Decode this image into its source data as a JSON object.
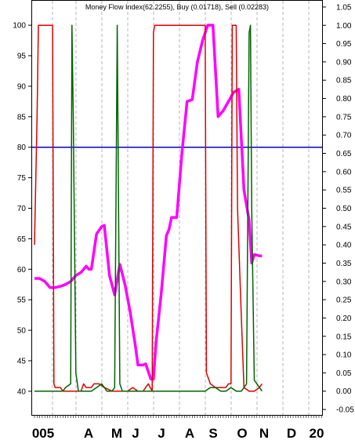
{
  "chart_data": {
    "type": "line",
    "title": "Money Flow Index(62.2255), Buy (0.01718), Sell (0.02283)",
    "y_left": {
      "range": [
        36,
        104
      ],
      "ticks": [
        100,
        95,
        90,
        85,
        80,
        75,
        70,
        65,
        60,
        55,
        50,
        45,
        40
      ]
    },
    "y_right": {
      "range": [
        -0.067,
        1.067
      ],
      "ticks": [
        "1.05",
        "1.00",
        "0.95",
        "0.90",
        "0.85",
        "0.80",
        "0.75",
        "0.70",
        "0.65",
        "0.60",
        "0.55",
        "0.50",
        "0.45",
        "0.40",
        "0.35",
        "0.30",
        "0.25",
        "0.20",
        "0.15",
        "0.10",
        "0.05",
        "0.00",
        "-0.05"
      ]
    },
    "x_axis": {
      "labels": [
        "005",
        "A",
        "M",
        "J",
        "J",
        "A",
        "S",
        "O",
        "N",
        "D",
        "20"
      ]
    },
    "grid": true,
    "series": [
      {
        "color": "#ff00ff",
        "axis": "left",
        "values": [
          [
            0,
            58.5
          ],
          [
            2,
            58.5
          ],
          [
            4,
            58
          ],
          [
            6,
            57
          ],
          [
            8,
            57
          ],
          [
            10,
            57.2
          ],
          [
            12,
            57.5
          ],
          [
            14,
            58
          ],
          [
            16,
            59
          ],
          [
            18,
            59.5
          ],
          [
            20,
            60.5
          ],
          [
            21,
            60
          ],
          [
            22,
            60
          ],
          [
            24,
            65.8
          ],
          [
            26,
            67
          ],
          [
            27,
            67.2
          ],
          [
            29,
            59
          ],
          [
            31,
            55.8
          ],
          [
            33,
            60.8
          ],
          [
            35,
            57.5
          ],
          [
            37,
            53
          ],
          [
            39,
            47.5
          ],
          [
            40,
            44.3
          ],
          [
            42,
            44.3
          ],
          [
            43,
            44.5
          ],
          [
            45,
            42
          ],
          [
            46,
            42
          ],
          [
            47,
            48
          ],
          [
            49,
            56
          ],
          [
            51,
            65.5
          ],
          [
            52,
            66.5
          ],
          [
            53,
            68.5
          ],
          [
            55,
            68.5
          ],
          [
            57,
            79
          ],
          [
            59,
            87.5
          ],
          [
            61,
            87.8
          ],
          [
            63,
            94
          ],
          [
            65,
            97.5
          ],
          [
            67,
            100
          ],
          [
            69,
            100
          ],
          [
            71,
            85
          ],
          [
            73,
            86
          ],
          [
            75,
            87.5
          ],
          [
            77,
            89
          ],
          [
            79,
            89.5
          ],
          [
            81,
            73
          ],
          [
            83,
            68
          ],
          [
            84,
            61
          ],
          [
            85,
            62.4
          ],
          [
            87,
            62.2
          ],
          [
            88,
            62.2
          ]
        ]
      },
      {
        "color": "#dd0000",
        "axis": "right",
        "values": [
          [
            0,
            0.4
          ],
          [
            1,
            0.75
          ],
          [
            1.5,
            1.0
          ],
          [
            7,
            1.0
          ],
          [
            7.5,
            0.02
          ],
          [
            8,
            0.01
          ],
          [
            10,
            0.01
          ],
          [
            11,
            0.0
          ],
          [
            13,
            0.0
          ],
          [
            15,
            0.0
          ],
          [
            16,
            0.0
          ],
          [
            18,
            0.0
          ],
          [
            19,
            0.02
          ],
          [
            20,
            0.01
          ],
          [
            22,
            0.01
          ],
          [
            23,
            0.02
          ],
          [
            25,
            0.02
          ],
          [
            27,
            0.01
          ],
          [
            30,
            0.0
          ],
          [
            32,
            0.0
          ],
          [
            34,
            0.0
          ],
          [
            36,
            0.0
          ],
          [
            38,
            0.01
          ],
          [
            40,
            0.0
          ],
          [
            42,
            0.0
          ],
          [
            44,
            0.02
          ],
          [
            45.5,
            0.0
          ],
          [
            46,
            0.98
          ],
          [
            46.5,
            1.0
          ],
          [
            66,
            1.0
          ],
          [
            66.5,
            0.05
          ],
          [
            68,
            0.02
          ],
          [
            70,
            0.01
          ],
          [
            72,
            0.01
          ],
          [
            74,
            0.01
          ],
          [
            75,
            0.02
          ],
          [
            76,
            0.02
          ],
          [
            76.5,
            1.0
          ],
          [
            78,
            1.0
          ],
          [
            78.5,
            0.5
          ],
          [
            80,
            0.2
          ],
          [
            81,
            0.01
          ],
          [
            83,
            0.0
          ],
          [
            85,
            0.0
          ],
          [
            87,
            0.01
          ],
          [
            88,
            0.02
          ]
        ]
      },
      {
        "color": "#006400",
        "axis": "right",
        "values": [
          [
            0,
            0.0
          ],
          [
            3,
            0.0
          ],
          [
            6,
            0.0
          ],
          [
            8,
            0.0
          ],
          [
            10,
            0.0
          ],
          [
            11,
            0.0
          ],
          [
            12,
            0.01
          ],
          [
            14,
            0.02
          ],
          [
            14.5,
            1.0
          ],
          [
            15,
            0.75
          ],
          [
            16,
            0.05
          ],
          [
            17,
            0.0
          ],
          [
            19,
            0.0
          ],
          [
            20,
            0.0
          ],
          [
            22,
            0.0
          ],
          [
            24,
            0.01
          ],
          [
            26,
            0.02
          ],
          [
            28,
            0.0
          ],
          [
            30,
            0.0
          ],
          [
            31,
            0.01
          ],
          [
            32,
            1.0
          ],
          [
            33,
            0.02
          ],
          [
            34,
            0.0
          ],
          [
            36,
            0.0
          ],
          [
            38,
            0.0
          ],
          [
            40,
            0.0
          ],
          [
            42,
            0.0
          ],
          [
            44,
            0.0
          ],
          [
            46,
            0.0
          ],
          [
            48,
            0.0
          ],
          [
            50,
            0.0
          ],
          [
            52,
            0.0
          ],
          [
            54,
            0.0
          ],
          [
            56,
            0.0
          ],
          [
            58,
            0.0
          ],
          [
            60,
            0.0
          ],
          [
            62,
            0.0
          ],
          [
            64,
            0.0
          ],
          [
            66,
            0.0
          ],
          [
            68,
            0.01
          ],
          [
            70,
            0.01
          ],
          [
            72,
            0.0
          ],
          [
            74,
            0.0
          ],
          [
            76,
            0.01
          ],
          [
            78,
            0.0
          ],
          [
            80,
            0.0
          ],
          [
            82,
            0.02
          ],
          [
            83,
            0.98
          ],
          [
            83.5,
            1.0
          ],
          [
            84,
            0.5
          ],
          [
            85,
            0.03
          ],
          [
            86,
            0.02
          ],
          [
            87,
            0.01
          ],
          [
            88,
            0.0
          ]
        ]
      }
    ],
    "reference_line": {
      "value": 80,
      "axis": "left",
      "color": "#0000cc"
    }
  }
}
